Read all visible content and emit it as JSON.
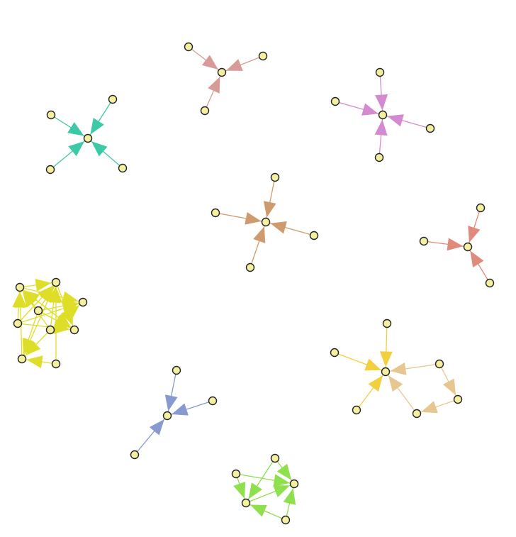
{
  "graph": {
    "directed": true,
    "components": [
      {
        "name": "pink-star",
        "color": "#d89a96",
        "nodes": [
          "a0",
          "a1",
          "a2",
          "a3"
        ],
        "edges": [
          [
            "a1",
            "a0"
          ],
          [
            "a2",
            "a0"
          ],
          [
            "a3",
            "a0"
          ]
        ]
      },
      {
        "name": "magenta-star",
        "color": "#d38ad0",
        "nodes": [
          "b0",
          "b1",
          "b2",
          "b3",
          "b4"
        ],
        "edges": [
          [
            "b1",
            "b0"
          ],
          [
            "b2",
            "b0"
          ],
          [
            "b3",
            "b0"
          ],
          [
            "b4",
            "b0"
          ]
        ]
      },
      {
        "name": "teal-star",
        "color": "#3cc9a5",
        "nodes": [
          "c0",
          "c1",
          "c2",
          "c3",
          "c4"
        ],
        "edges": [
          [
            "c1",
            "c0"
          ],
          [
            "c2",
            "c0"
          ],
          [
            "c3",
            "c0"
          ],
          [
            "c4",
            "c0"
          ]
        ]
      },
      {
        "name": "brown-star",
        "color": "#cf9a6e",
        "nodes": [
          "d0",
          "d1",
          "d2",
          "d3",
          "d4"
        ],
        "edges": [
          [
            "d1",
            "d0"
          ],
          [
            "d2",
            "d0"
          ],
          [
            "d3",
            "d0"
          ],
          [
            "d4",
            "d0"
          ]
        ]
      },
      {
        "name": "salmon-star",
        "color": "#e08a7c",
        "nodes": [
          "e0",
          "e1",
          "e2",
          "e3"
        ],
        "edges": [
          [
            "e1",
            "e0"
          ],
          [
            "e2",
            "e0"
          ],
          [
            "e3",
            "e0"
          ]
        ]
      },
      {
        "name": "yellow-cluster",
        "color": "#dede28",
        "nodes": [
          "f0",
          "f1",
          "f2",
          "f3",
          "f4",
          "f5",
          "f6",
          "f7",
          "f8"
        ],
        "edges": [
          [
            "f3",
            "f0"
          ],
          [
            "f5",
            "f0"
          ],
          [
            "f4",
            "f0"
          ],
          [
            "f6",
            "f0"
          ],
          [
            "f7",
            "f0"
          ],
          [
            "f3",
            "f1"
          ],
          [
            "f0",
            "f1"
          ],
          [
            "f5",
            "f1"
          ],
          [
            "f8",
            "f1"
          ],
          [
            "f4",
            "f1"
          ],
          [
            "f3",
            "f2"
          ],
          [
            "f0",
            "f2"
          ],
          [
            "f5",
            "f2"
          ],
          [
            "f4",
            "f2"
          ],
          [
            "f0",
            "f6"
          ],
          [
            "f1",
            "f6"
          ],
          [
            "f3",
            "f6"
          ],
          [
            "f4",
            "f6"
          ],
          [
            "f5",
            "f7"
          ],
          [
            "f1",
            "f7"
          ],
          [
            "f3",
            "f7"
          ],
          [
            "f8",
            "f7"
          ]
        ]
      },
      {
        "name": "orange-cluster",
        "color": "#f2cf3c",
        "color2": "#e8c690",
        "nodes": [
          "g0",
          "g1",
          "g2",
          "g3",
          "g4",
          "g5",
          "g6"
        ],
        "edges": [
          [
            "g1",
            "g0"
          ],
          [
            "g2",
            "g0"
          ],
          [
            "g3",
            "g0"
          ],
          [
            "g4",
            "g0",
            "c2"
          ],
          [
            "g6",
            "g0",
            "c2"
          ],
          [
            "g4",
            "g5",
            "c2"
          ],
          [
            "g5",
            "g6",
            "c2"
          ]
        ]
      },
      {
        "name": "blue-star",
        "color": "#8799cf",
        "nodes": [
          "h0",
          "h1",
          "h2",
          "h3"
        ],
        "edges": [
          [
            "h1",
            "h0"
          ],
          [
            "h2",
            "h0"
          ],
          [
            "h3",
            "h0"
          ]
        ]
      },
      {
        "name": "green-cluster",
        "color": "#8ee04c",
        "nodes": [
          "i0",
          "i1",
          "i2",
          "i3",
          "i4"
        ],
        "edges": [
          [
            "i1",
            "i2"
          ],
          [
            "i0",
            "i2"
          ],
          [
            "i0",
            "i3"
          ],
          [
            "i1",
            "i3"
          ],
          [
            "i4",
            "i2"
          ],
          [
            "i4",
            "i3"
          ],
          [
            "i3",
            "i2"
          ]
        ]
      }
    ]
  }
}
